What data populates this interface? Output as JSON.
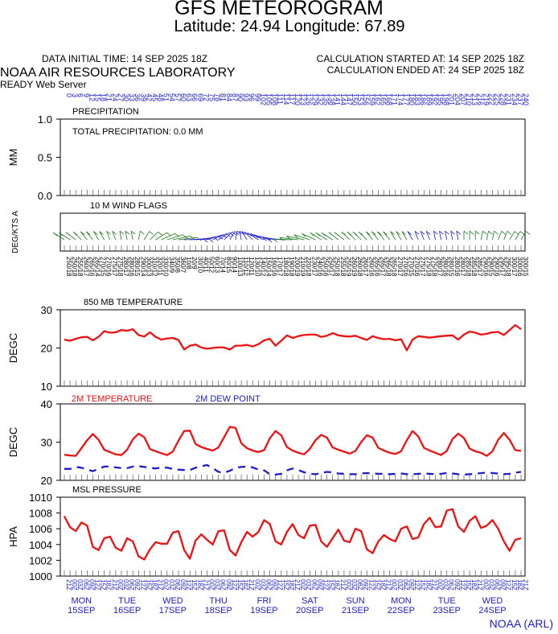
{
  "header": {
    "title": "GFS METEOROGRAM",
    "subtitle": "Latitude: 24.94 Longitude:  67.89",
    "data_initial_time": "DATA INITIAL TIME: 14 SEP 2025 18Z",
    "calc_started": "CALCULATION STARTED AT: 14 SEP 2025 18Z",
    "calc_ended": "CALCULATION ENDED AT: 24 SEP 2025 18Z",
    "lab": "NOAA AIR RESOURCES LABORATORY",
    "server": "READY Web Server",
    "credit": "NOAA (ARL)"
  },
  "colors": {
    "axis": "#000000",
    "red": "#ee1111",
    "blue": "#1c1cd0",
    "green": "#1a7a1a"
  },
  "chart_data": [
    {
      "type": "line",
      "title": "PRECIPITATION",
      "annotation": "TOTAL PRECIPITATION:   0.0 MM",
      "ylabel": "MM",
      "ylim": [
        0,
        1
      ],
      "yticks": [
        "1.0",
        "0.5",
        "0.0"
      ],
      "series": [
        {
          "values": []
        }
      ]
    },
    {
      "type": "line",
      "title": "10 M  WIND FLAGS",
      "ylabel": "DEG/KTS  A",
      "series": []
    },
    {
      "type": "line",
      "title": "850 MB  TEMPERATURE",
      "ylabel": "DEGC",
      "ylim": [
        10,
        30
      ],
      "yticks": [
        "30",
        "20",
        "10"
      ],
      "series": [
        {
          "color": "#ee1111",
          "values": [
            22.2,
            21.9,
            22.4,
            22.8,
            22.9,
            22.0,
            22.9,
            24.4,
            24.0,
            24.1,
            24.7,
            24.5,
            24.9,
            23.4,
            23.0,
            24.1,
            22.9,
            22.2,
            22.5,
            22.6,
            22.1,
            19.6,
            20.6,
            20.9,
            20.1,
            19.8,
            20.0,
            20.2,
            20.1,
            19.6,
            20.6,
            20.6,
            20.8,
            20.4,
            21.0,
            22.0,
            22.4,
            20.6,
            21.9,
            23.3,
            22.6,
            23.1,
            23.4,
            23.5,
            23.5,
            22.9,
            23.2,
            23.9,
            23.3,
            23.1,
            23.0,
            23.2,
            22.6,
            22.1,
            23.1,
            22.6,
            22.3,
            22.4,
            22.0,
            22.3,
            19.4,
            22.2,
            23.1,
            22.9,
            22.7,
            22.9,
            23.1,
            23.2,
            23.3,
            22.2,
            23.5,
            24.3,
            24.0,
            23.5,
            23.7,
            24.1,
            24.2,
            23.4,
            24.7,
            26.0,
            24.9
          ]
        }
      ]
    },
    {
      "type": "line",
      "title": "2M TEMPERATURE",
      "ylabel": "DEGC",
      "ylim": [
        20,
        40
      ],
      "yticks": [
        "40",
        "30",
        "20"
      ],
      "legend": [
        {
          "label": "2M TEMPERATURE",
          "color": "#ee1111"
        },
        {
          "label": "2M   DEW POINT",
          "color": "#1c1cd0"
        }
      ],
      "series": [
        {
          "name": "2M TEMPERATURE",
          "color": "#ee1111",
          "values": [
            26.7,
            26.5,
            26.4,
            28.4,
            30.5,
            32.1,
            30.6,
            28.0,
            27.4,
            26.8,
            26.6,
            28.0,
            30.7,
            32.2,
            31.3,
            28.2,
            27.6,
            27.1,
            26.6,
            27.5,
            30.4,
            32.9,
            33.0,
            29.5,
            28.7,
            28.2,
            27.8,
            28.6,
            31.3,
            34.0,
            33.7,
            29.7,
            28.4,
            27.8,
            27.4,
            27.9,
            31.0,
            32.9,
            31.8,
            28.7,
            27.8,
            27.2,
            26.8,
            28.2,
            30.5,
            31.9,
            31.2,
            28.6,
            28.0,
            27.5,
            27.0,
            27.7,
            30.0,
            31.8,
            31.2,
            28.5,
            27.8,
            27.2,
            26.9,
            27.6,
            30.5,
            32.9,
            31.5,
            28.5,
            27.8,
            27.2,
            26.6,
            27.7,
            30.8,
            32.2,
            31.1,
            28.3,
            27.6,
            27.2,
            26.4,
            27.6,
            30.6,
            32.4,
            30.6,
            27.9,
            27.7
          ]
        },
        {
          "name": "2M   DEW POINT",
          "color": "#1c1cd0",
          "dashed": true,
          "values": [
            23.0,
            23.0,
            23.5,
            23.3,
            22.8,
            22.4,
            23.0,
            23.6,
            23.6,
            23.4,
            23.2,
            23.2,
            23.6,
            23.7,
            23.5,
            23.3,
            23.1,
            23.4,
            23.3,
            23.0,
            22.8,
            22.7,
            22.7,
            23.3,
            23.7,
            24.0,
            23.2,
            22.2,
            22.0,
            22.5,
            23.3,
            23.5,
            23.6,
            23.4,
            22.8,
            22.6,
            21.6,
            21.5,
            21.7,
            22.6,
            23.1,
            22.7,
            22.1,
            21.7,
            21.6,
            21.9,
            22.2,
            22.1,
            21.8,
            21.7,
            21.6,
            21.6,
            21.8,
            21.9,
            21.8,
            21.7,
            21.7,
            21.6,
            21.7,
            21.8,
            21.6,
            21.6,
            21.7,
            21.8,
            21.7,
            21.6,
            21.7,
            21.9,
            21.8,
            21.6,
            21.5,
            21.6,
            21.7,
            21.9,
            22.0,
            21.9,
            21.8,
            21.6,
            21.7,
            22.0,
            22.2
          ]
        }
      ]
    },
    {
      "type": "line",
      "title": "MSL PRESSURE",
      "ylabel": "HPA",
      "ylim": [
        1000,
        1010
      ],
      "yticks": [
        "1010",
        "1008",
        "1006",
        "1004",
        "1002",
        "1000"
      ],
      "series": [
        {
          "color": "#ee1111",
          "values": [
            1007.6,
            1006.2,
            1005.7,
            1006.8,
            1006.4,
            1003.7,
            1003.3,
            1004.8,
            1005.0,
            1003.6,
            1003.2,
            1004.8,
            1004.4,
            1002.5,
            1002.1,
            1003.4,
            1004.3,
            1004.1,
            1004.1,
            1005.5,
            1005.7,
            1003.3,
            1002.2,
            1004.5,
            1005.3,
            1004.6,
            1004.0,
            1005.7,
            1005.8,
            1003.3,
            1002.6,
            1004.3,
            1005.6,
            1005.0,
            1005.6,
            1007.1,
            1006.6,
            1004.4,
            1004.0,
            1005.6,
            1006.6,
            1005.2,
            1004.8,
            1006.4,
            1006.5,
            1004.4,
            1003.7,
            1004.8,
            1005.9,
            1004.5,
            1004.3,
            1006.0,
            1005.7,
            1003.4,
            1002.9,
            1004.4,
            1005.2,
            1004.7,
            1004.4,
            1006.0,
            1006.3,
            1004.7,
            1004.9,
            1006.6,
            1007.4,
            1006.2,
            1006.3,
            1008.3,
            1008.5,
            1006.3,
            1005.6,
            1007.0,
            1007.6,
            1006.1,
            1006.4,
            1007.1,
            1006.0,
            1004.4,
            1003.2,
            1004.6,
            1004.8
          ]
        }
      ]
    }
  ],
  "top_axis_labels": [
    "0",
    "3",
    "6",
    "9",
    "12",
    "15",
    "18",
    "21",
    "24",
    "27",
    "30",
    "33",
    "36",
    "39",
    "42",
    "45",
    "48",
    "51",
    "54",
    "57",
    "60",
    "63",
    "66",
    "69",
    "72",
    "75",
    "78",
    "81",
    "84",
    "87",
    "90",
    "93",
    "96",
    "99",
    "102",
    "105",
    "108",
    "111",
    "114",
    "117",
    "120",
    "123",
    "126",
    "129",
    "132",
    "135",
    "138",
    "141",
    "144",
    "147",
    "150",
    "153",
    "156",
    "159",
    "162",
    "165",
    "168",
    "171",
    "174",
    "177",
    "180",
    "183",
    "186",
    "189",
    "192",
    "195",
    "198",
    "201",
    "204",
    "207",
    "210",
    "213",
    "216",
    "219",
    "222",
    "225",
    "228",
    "231",
    "234",
    "237",
    "240"
  ],
  "wind_direction_labels": [
    "250",
    "250",
    "255",
    "260",
    "265",
    "265",
    "270",
    "270",
    "275",
    "275",
    "280",
    "280",
    "280",
    "290",
    "300",
    "310",
    "320",
    "330",
    "340",
    "350",
    "360",
    "10",
    "20",
    "30",
    "40",
    "50",
    "60",
    "70",
    "80",
    "90",
    "100",
    "110",
    "120",
    "130",
    "140",
    "150",
    "160",
    "170",
    "180",
    "190",
    "200",
    "210",
    "220",
    "230",
    "240",
    "250",
    "250",
    "250",
    "255",
    "255",
    "260",
    "260",
    "260",
    "260",
    "265",
    "265",
    "265",
    "265",
    "270",
    "270",
    "270",
    "270",
    "275",
    "275",
    "275",
    "280",
    "280",
    "280",
    "280",
    "280",
    "285",
    "285",
    "285",
    "290",
    "290",
    "290",
    "295",
    "295",
    "300",
    "300",
    "300"
  ],
  "wind_speed_labels": [
    "18",
    "18",
    "18",
    "17",
    "16",
    "14",
    "15",
    "16",
    "17",
    "18",
    "17",
    "16",
    "15",
    "14",
    "13",
    "12",
    "11",
    "10",
    "9",
    "8",
    "7",
    "8",
    "9",
    "10",
    "11",
    "12",
    "13",
    "14",
    "15",
    "14",
    "13",
    "12",
    "11",
    "10",
    "12",
    "14",
    "16",
    "17",
    "18",
    "18",
    "19",
    "19",
    "18",
    "17",
    "16",
    "16",
    "17",
    "18",
    "18",
    "19",
    "19",
    "18",
    "17",
    "16",
    "16",
    "17",
    "18",
    "18",
    "17",
    "16",
    "15",
    "16",
    "17",
    "18",
    "18",
    "17",
    "16",
    "15",
    "16",
    "17",
    "18",
    "18",
    "17",
    "16",
    "15",
    "16",
    "17",
    "18",
    "17",
    "16",
    "15"
  ],
  "bottom_axis": {
    "hour_ticks": [
      "21Z",
      "00Z",
      "03Z",
      "06Z",
      "09Z",
      "12Z",
      "15Z",
      "18Z"
    ],
    "days": [
      {
        "day": "MON",
        "date": "15SEP"
      },
      {
        "day": "TUE",
        "date": "16SEP"
      },
      {
        "day": "WED",
        "date": "17SEP"
      },
      {
        "day": "THU",
        "date": "18SEP"
      },
      {
        "day": "FRI",
        "date": "19SEP"
      },
      {
        "day": "SAT",
        "date": "20SEP"
      },
      {
        "day": "SUN",
        "date": "21SEP"
      },
      {
        "day": "MON",
        "date": "22SEP"
      },
      {
        "day": "TUE",
        "date": "23SEP"
      },
      {
        "day": "WED",
        "date": "24SEP"
      }
    ]
  }
}
